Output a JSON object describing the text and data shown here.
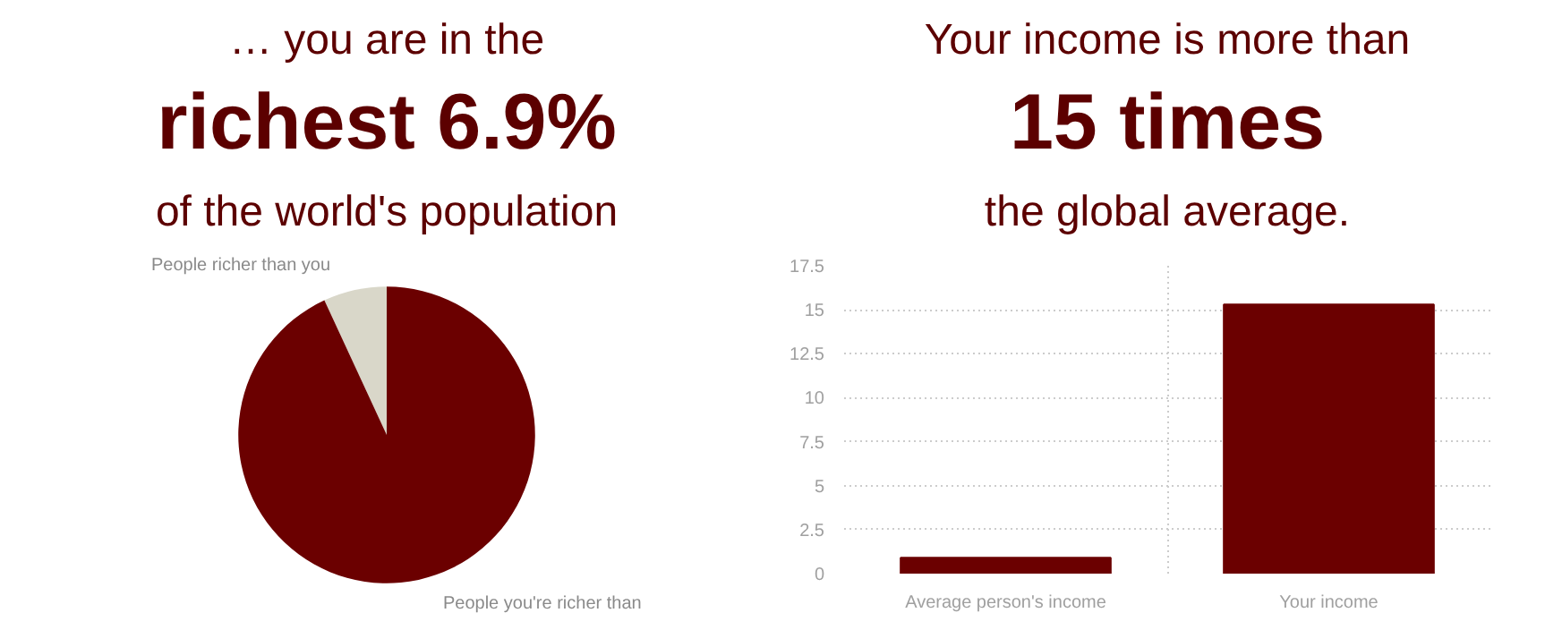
{
  "chart_data": [
    {
      "type": "pie",
      "title": "… you are in the\nrichest 6.9%\nof the world's population",
      "categories": [
        "People richer than you",
        "People you're richer than"
      ],
      "values": [
        6.9,
        93.1
      ],
      "colors": [
        "#d9d7c9",
        "#6b0000"
      ]
    },
    {
      "type": "bar",
      "title": "Your income is more than\n15 times\nthe global average.",
      "categories": [
        "Average person's income",
        "Your income"
      ],
      "values": [
        0.9,
        15.3
      ],
      "color": "#6b0000",
      "ylim": [
        0,
        17.5
      ],
      "yticks": [
        0,
        2.5,
        5,
        7.5,
        10,
        12.5,
        15,
        17.5
      ],
      "grid": true
    }
  ]
}
